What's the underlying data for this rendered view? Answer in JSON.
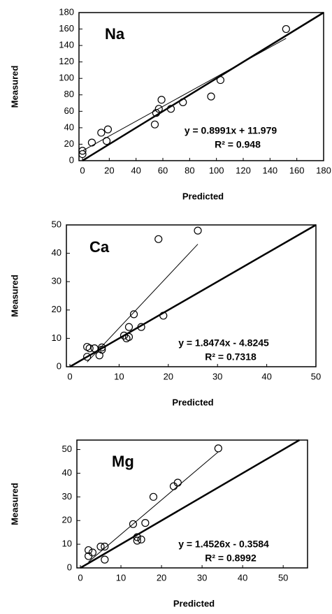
{
  "chart_data": [
    {
      "type": "scatter",
      "title": "Na",
      "x_label": "Predicted",
      "y_label": "Measured",
      "fit": {
        "label": "y = 0.8991x + 11.979",
        "slope": 0.8991,
        "intercept": 11.979
      },
      "r2_label": "R² = 0.948",
      "x": [
        0,
        0,
        7,
        14,
        18,
        19,
        54,
        55,
        57,
        59,
        66,
        75,
        96,
        103,
        152
      ],
      "y": [
        8,
        12,
        22,
        34,
        24,
        38,
        44,
        58,
        63,
        74,
        63,
        71,
        78,
        98,
        160
      ],
      "xlim": [
        0,
        180
      ],
      "ylim": [
        0,
        180
      ],
      "xticks": [
        0,
        20,
        40,
        60,
        80,
        100,
        120,
        140,
        160,
        180
      ],
      "yticks": [
        0,
        20,
        40,
        60,
        80,
        100,
        120,
        140,
        160,
        180
      ]
    },
    {
      "type": "scatter",
      "title": "Ca",
      "x_label": "Predicted",
      "y_label": "Measured",
      "fit": {
        "label": "y = 1.8474x - 4.8245",
        "slope": 1.8474,
        "intercept": -4.8245
      },
      "r2_label": "R² = 0.7318",
      "x": [
        3.5,
        3.5,
        4,
        5,
        6,
        6.5,
        6.5,
        11,
        11.5,
        12,
        12,
        13,
        14.5,
        18,
        19,
        26
      ],
      "y": [
        3.5,
        7,
        6.5,
        6.5,
        4,
        6,
        6.8,
        11,
        10,
        14,
        10.5,
        18.5,
        14,
        45,
        18,
        48
      ],
      "xlim": [
        0,
        50
      ],
      "ylim": [
        0,
        50
      ],
      "xticks": [
        0,
        10,
        20,
        30,
        40,
        50
      ],
      "yticks": [
        0,
        10,
        20,
        30,
        40,
        50
      ]
    },
    {
      "type": "scatter",
      "title": "Mg",
      "x_label": "Predicted",
      "y_label": "Measured",
      "fit": {
        "label": "y = 1.4526x - 0.3584",
        "slope": 1.4526,
        "intercept": -0.3584
      },
      "r2_label": "R² = 0.8992",
      "x": [
        2,
        2,
        3,
        5,
        6,
        6,
        13,
        14,
        14,
        15,
        16,
        18,
        23,
        24,
        34
      ],
      "y": [
        7.5,
        5,
        6.5,
        9,
        3.5,
        9,
        18.5,
        13,
        11.5,
        12,
        19,
        30,
        34.5,
        36,
        50.5
      ],
      "xlim": [
        0,
        56
      ],
      "ylim": [
        0,
        54
      ],
      "xticks": [
        0,
        10,
        20,
        30,
        40,
        50
      ],
      "yticks": [
        0,
        10,
        20,
        30,
        40,
        50
      ]
    }
  ]
}
